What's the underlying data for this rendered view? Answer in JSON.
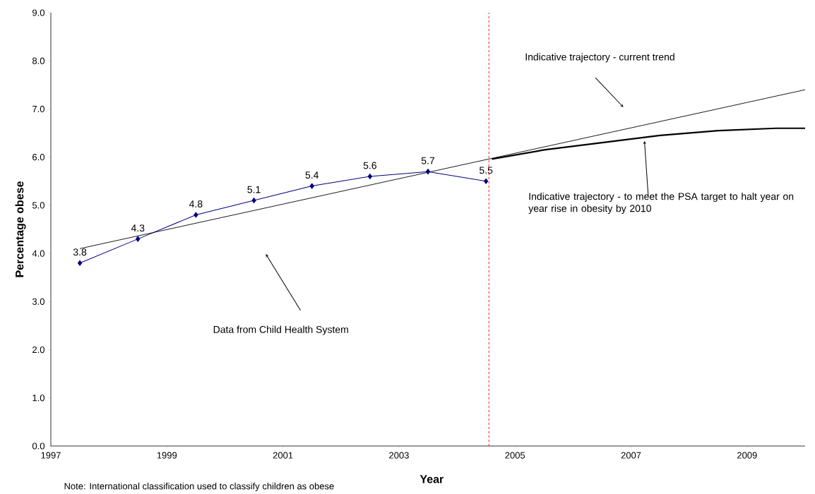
{
  "chart_data": {
    "type": "line",
    "xlabel": "Year",
    "ylabel": "Percentage obese",
    "xlim": [
      1997,
      2010
    ],
    "xticks": [
      1997,
      1999,
      2001,
      2003,
      2005,
      2007,
      2009
    ],
    "ylim": [
      0,
      9
    ],
    "yticks": [
      {
        "value": 0,
        "label": "0.0"
      },
      {
        "value": 1,
        "label": "1.0"
      },
      {
        "value": 2,
        "label": "2.0"
      },
      {
        "value": 3,
        "label": "3.0"
      },
      {
        "value": 4,
        "label": "4.0"
      },
      {
        "value": 5,
        "label": "5.0"
      },
      {
        "value": 6,
        "label": "6.0"
      },
      {
        "value": 7,
        "label": "7.0"
      },
      {
        "value": 8,
        "label": "8.0"
      },
      {
        "value": 9,
        "label": "9.0"
      }
    ],
    "grid": false,
    "series": [
      {
        "color": "#000080",
        "marker": "diamond",
        "x": [
          1997.5,
          1998.5,
          1999.5,
          2000.5,
          2001.5,
          2002.5,
          2003.5,
          2004.5
        ],
        "values": [
          3.8,
          4.3,
          4.8,
          5.1,
          5.4,
          5.6,
          5.7,
          5.5
        ],
        "value_labels": [
          "3.8",
          "4.3",
          "4.8",
          "5.1",
          "5.4",
          "5.6",
          "5.7",
          "5.5"
        ]
      },
      {
        "color": "#000000",
        "marker": "none",
        "x": [
          1997.5,
          2010
        ],
        "values": [
          4.1,
          7.4
        ]
      },
      {
        "color": "#000000",
        "marker": "none",
        "x": [
          2004.6,
          2005.5,
          2006.5,
          2007.5,
          2008.5,
          2009.5,
          2010
        ],
        "values": [
          5.96,
          6.15,
          6.3,
          6.45,
          6.55,
          6.6,
          6.6
        ]
      }
    ],
    "ref_lines": [
      {
        "axis": "x",
        "value": 2004.55,
        "color": "#ff0000",
        "line_style": "dashed"
      }
    ],
    "annotations": [
      "Indicative trajectory - current trend",
      "Indicative trajectory - to meet the PSA target to halt year on year rise in obesity by 2010",
      "Data from Child Health System",
      "Note: International classification used to classify children as obese"
    ]
  }
}
